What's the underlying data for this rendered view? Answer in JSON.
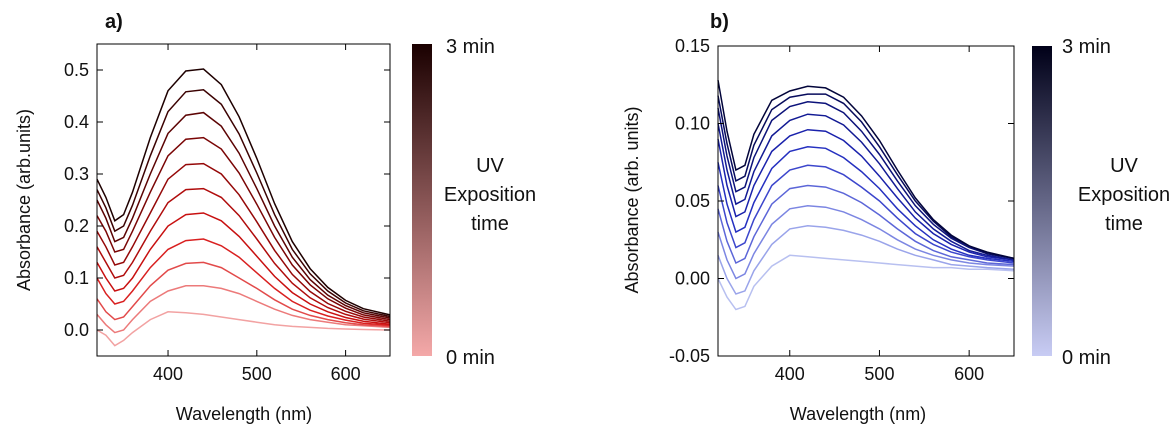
{
  "chart_data": [
    {
      "panel_label": "a)",
      "type": "line",
      "xlabel": "Wavelength (nm)",
      "ylabel": "Absorbance (arb.units)",
      "xlim": [
        320,
        650
      ],
      "ylim": [
        -0.05,
        0.55
      ],
      "xticks": [
        400,
        500,
        600
      ],
      "xtick_labels": [
        "400",
        "500",
        "600"
      ],
      "yticks": [
        0.0,
        0.1,
        0.2,
        0.3,
        0.4,
        0.5
      ],
      "ytick_labels": [
        "0.0",
        "0.1",
        "0.2",
        "0.3",
        "0.4",
        "0.5"
      ],
      "grid": false,
      "colorbar": {
        "title_lines": [
          "UV",
          "Exposition",
          "time"
        ],
        "top_label": "3 min",
        "bottom_label": "0 min",
        "color_top": "#1a0000",
        "color_bottom": "#f4a8a8"
      },
      "series_colors": [
        "#f2a2a2",
        "#ec7a7a",
        "#e24a4a",
        "#d92020",
        "#c81010",
        "#b00c0c",
        "#950808",
        "#7a0505",
        "#5c0303",
        "#3c0202",
        "#1e0000"
      ],
      "x": [
        320,
        330,
        340,
        350,
        360,
        380,
        400,
        420,
        440,
        460,
        480,
        500,
        520,
        540,
        560,
        580,
        600,
        620,
        650
      ],
      "series": [
        {
          "values": [
            0.0,
            -0.01,
            -0.03,
            -0.02,
            -0.005,
            0.02,
            0.035,
            0.033,
            0.03,
            0.025,
            0.02,
            0.015,
            0.01,
            0.007,
            0.005,
            0.003,
            0.002,
            0.001,
            0.0
          ]
        },
        {
          "values": [
            0.03,
            0.01,
            -0.005,
            0.0,
            0.02,
            0.055,
            0.075,
            0.085,
            0.085,
            0.08,
            0.07,
            0.055,
            0.04,
            0.028,
            0.02,
            0.015,
            0.01,
            0.008,
            0.005
          ]
        },
        {
          "values": [
            0.06,
            0.035,
            0.02,
            0.025,
            0.045,
            0.085,
            0.115,
            0.128,
            0.13,
            0.12,
            0.1,
            0.08,
            0.058,
            0.04,
            0.028,
            0.02,
            0.014,
            0.01,
            0.007
          ]
        },
        {
          "values": [
            0.1,
            0.07,
            0.05,
            0.055,
            0.075,
            0.12,
            0.155,
            0.172,
            0.175,
            0.162,
            0.14,
            0.11,
            0.08,
            0.055,
            0.038,
            0.027,
            0.019,
            0.013,
            0.009
          ]
        },
        {
          "values": [
            0.13,
            0.1,
            0.075,
            0.08,
            0.1,
            0.155,
            0.2,
            0.222,
            0.225,
            0.21,
            0.18,
            0.142,
            0.103,
            0.072,
            0.05,
            0.035,
            0.024,
            0.017,
            0.011
          ]
        },
        {
          "values": [
            0.16,
            0.13,
            0.1,
            0.105,
            0.13,
            0.19,
            0.245,
            0.27,
            0.272,
            0.255,
            0.22,
            0.175,
            0.128,
            0.09,
            0.062,
            0.043,
            0.03,
            0.021,
            0.014
          ]
        },
        {
          "values": [
            0.19,
            0.16,
            0.125,
            0.13,
            0.16,
            0.225,
            0.29,
            0.318,
            0.32,
            0.3,
            0.26,
            0.208,
            0.153,
            0.107,
            0.074,
            0.051,
            0.036,
            0.025,
            0.017
          ]
        },
        {
          "values": [
            0.22,
            0.19,
            0.15,
            0.155,
            0.19,
            0.265,
            0.335,
            0.367,
            0.37,
            0.348,
            0.302,
            0.242,
            0.178,
            0.125,
            0.087,
            0.06,
            0.042,
            0.029,
            0.02
          ]
        },
        {
          "values": [
            0.25,
            0.215,
            0.17,
            0.178,
            0.215,
            0.3,
            0.378,
            0.413,
            0.418,
            0.392,
            0.34,
            0.272,
            0.2,
            0.14,
            0.097,
            0.067,
            0.047,
            0.033,
            0.023
          ]
        },
        {
          "values": [
            0.27,
            0.235,
            0.19,
            0.2,
            0.24,
            0.335,
            0.42,
            0.458,
            0.462,
            0.434,
            0.377,
            0.302,
            0.222,
            0.155,
            0.108,
            0.075,
            0.052,
            0.037,
            0.026
          ]
        },
        {
          "values": [
            0.29,
            0.255,
            0.21,
            0.222,
            0.265,
            0.37,
            0.46,
            0.498,
            0.502,
            0.472,
            0.41,
            0.33,
            0.243,
            0.17,
            0.118,
            0.082,
            0.057,
            0.041,
            0.029
          ]
        }
      ]
    },
    {
      "panel_label": "b)",
      "type": "line",
      "xlabel": "Wavelength (nm)",
      "ylabel": "Absorbance (arb. units)",
      "xlim": [
        320,
        650
      ],
      "ylim": [
        -0.05,
        0.15
      ],
      "xticks": [
        400,
        500,
        600
      ],
      "xtick_labels": [
        "400",
        "500",
        "600"
      ],
      "yticks": [
        -0.05,
        0.0,
        0.05,
        0.1,
        0.15
      ],
      "ytick_labels": [
        "-0.05",
        "0.00",
        "0.05",
        "0.10",
        "0.15"
      ],
      "grid": false,
      "colorbar": {
        "title_lines": [
          "UV",
          "Exposition",
          "time"
        ],
        "top_label": "3 min",
        "bottom_label": "0 min",
        "color_top": "#000018",
        "color_bottom": "#c8ccf4"
      },
      "series_colors": [
        "#b8c0f0",
        "#9aa4ea",
        "#7c86e2",
        "#5c66d8",
        "#3c46cc",
        "#2530c0",
        "#1a22ac",
        "#121a94",
        "#0c127a",
        "#070b5c",
        "#02043a"
      ],
      "x": [
        320,
        330,
        340,
        350,
        360,
        380,
        400,
        420,
        440,
        460,
        480,
        500,
        520,
        540,
        560,
        580,
        600,
        620,
        650
      ],
      "series": [
        {
          "values": [
            0.0,
            -0.012,
            -0.02,
            -0.018,
            -0.005,
            0.008,
            0.015,
            0.014,
            0.013,
            0.012,
            0.011,
            0.01,
            0.009,
            0.008,
            0.007,
            0.007,
            0.006,
            0.006,
            0.005
          ]
        },
        {
          "values": [
            0.015,
            0.0,
            -0.01,
            -0.008,
            0.005,
            0.022,
            0.032,
            0.034,
            0.033,
            0.031,
            0.028,
            0.024,
            0.019,
            0.015,
            0.012,
            0.009,
            0.008,
            0.007,
            0.006
          ]
        },
        {
          "values": [
            0.03,
            0.012,
            0.0,
            0.003,
            0.016,
            0.035,
            0.045,
            0.047,
            0.046,
            0.043,
            0.038,
            0.032,
            0.025,
            0.019,
            0.015,
            0.012,
            0.01,
            0.009,
            0.008
          ]
        },
        {
          "values": [
            0.045,
            0.024,
            0.01,
            0.013,
            0.027,
            0.048,
            0.058,
            0.06,
            0.059,
            0.055,
            0.049,
            0.041,
            0.032,
            0.024,
            0.018,
            0.014,
            0.012,
            0.01,
            0.009
          ]
        },
        {
          "values": [
            0.06,
            0.036,
            0.02,
            0.023,
            0.038,
            0.06,
            0.07,
            0.073,
            0.072,
            0.067,
            0.059,
            0.05,
            0.039,
            0.029,
            0.022,
            0.017,
            0.014,
            0.012,
            0.01
          ]
        },
        {
          "values": [
            0.075,
            0.048,
            0.03,
            0.033,
            0.049,
            0.071,
            0.082,
            0.085,
            0.084,
            0.078,
            0.069,
            0.058,
            0.045,
            0.034,
            0.025,
            0.019,
            0.015,
            0.013,
            0.011
          ]
        },
        {
          "values": [
            0.09,
            0.06,
            0.04,
            0.043,
            0.06,
            0.082,
            0.092,
            0.096,
            0.095,
            0.089,
            0.079,
            0.066,
            0.052,
            0.039,
            0.029,
            0.022,
            0.017,
            0.014,
            0.012
          ]
        },
        {
          "values": [
            0.1,
            0.07,
            0.048,
            0.051,
            0.069,
            0.092,
            0.102,
            0.106,
            0.105,
            0.099,
            0.088,
            0.074,
            0.058,
            0.043,
            0.032,
            0.024,
            0.018,
            0.015,
            0.012
          ]
        },
        {
          "values": [
            0.11,
            0.079,
            0.056,
            0.059,
            0.078,
            0.102,
            0.111,
            0.114,
            0.113,
            0.107,
            0.095,
            0.08,
            0.063,
            0.047,
            0.035,
            0.026,
            0.02,
            0.016,
            0.013
          ]
        },
        {
          "values": [
            0.118,
            0.087,
            0.063,
            0.066,
            0.086,
            0.109,
            0.117,
            0.119,
            0.119,
            0.113,
            0.101,
            0.085,
            0.067,
            0.05,
            0.037,
            0.027,
            0.021,
            0.016,
            0.013
          ]
        },
        {
          "values": [
            0.128,
            0.095,
            0.07,
            0.073,
            0.093,
            0.115,
            0.121,
            0.124,
            0.123,
            0.117,
            0.105,
            0.089,
            0.07,
            0.052,
            0.038,
            0.028,
            0.021,
            0.017,
            0.013
          ]
        }
      ]
    }
  ]
}
